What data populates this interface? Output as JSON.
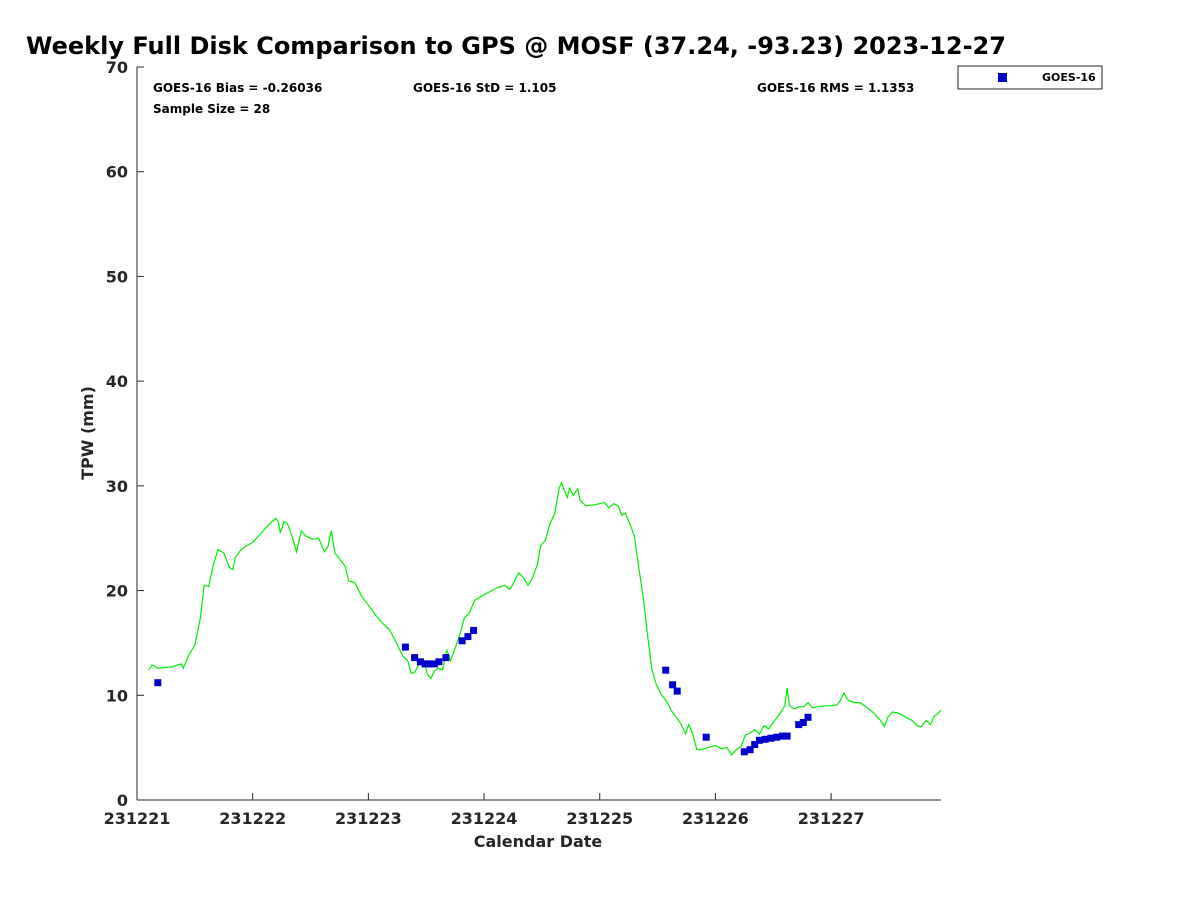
{
  "chart_data": {
    "type": "line",
    "title": "Weekly Full Disk Comparison to GPS @ MOSF (37.24, -93.23) 2023-12-27",
    "xlabel": "Calendar Date",
    "ylabel": "TPW (mm)",
    "xlim": [
      0,
      6.95
    ],
    "ylim": [
      0,
      70
    ],
    "x_ticks": [
      {
        "value": 0,
        "label": "231221"
      },
      {
        "value": 1,
        "label": "231222"
      },
      {
        "value": 2,
        "label": "231223"
      },
      {
        "value": 3,
        "label": "231224"
      },
      {
        "value": 4,
        "label": "231225"
      },
      {
        "value": 5,
        "label": "231226"
      },
      {
        "value": 6,
        "label": "231227"
      }
    ],
    "y_ticks": [
      {
        "value": 0,
        "label": "0"
      },
      {
        "value": 10,
        "label": "10"
      },
      {
        "value": 20,
        "label": "20"
      },
      {
        "value": 30,
        "label": "30"
      },
      {
        "value": 40,
        "label": "40"
      },
      {
        "value": 50,
        "label": "50"
      },
      {
        "value": 60,
        "label": "60"
      },
      {
        "value": 70,
        "label": "70"
      }
    ],
    "stats": {
      "bias": "GOES-16 Bias = -0.26036",
      "std": "GOES-16 StD = 1.105",
      "rms": "GOES-16 RMS = 1.1353",
      "sample_size": "Sample Size = 28"
    },
    "legend": {
      "position": "top-right, outside plot",
      "entries": [
        {
          "label": "GOES-16",
          "color": "#0000cc",
          "marker": "square"
        }
      ]
    },
    "series": [
      {
        "style": "line",
        "color": "#00ee00",
        "points": [
          [
            0.1,
            12.4
          ],
          [
            0.13,
            12.9
          ],
          [
            0.18,
            12.6
          ],
          [
            0.3,
            12.7
          ],
          [
            0.38,
            13.0
          ],
          [
            0.4,
            12.6
          ],
          [
            0.45,
            13.9
          ],
          [
            0.5,
            14.8
          ],
          [
            0.55,
            17.5
          ],
          [
            0.58,
            20.5
          ],
          [
            0.62,
            20.4
          ],
          [
            0.66,
            22.5
          ],
          [
            0.7,
            23.9
          ],
          [
            0.75,
            23.6
          ],
          [
            0.8,
            22.2
          ],
          [
            0.83,
            22.0
          ],
          [
            0.85,
            23.2
          ],
          [
            0.9,
            23.9
          ],
          [
            0.95,
            24.3
          ],
          [
            1.0,
            24.6
          ],
          [
            1.05,
            25.2
          ],
          [
            1.1,
            25.8
          ],
          [
            1.15,
            26.4
          ],
          [
            1.2,
            26.9
          ],
          [
            1.22,
            26.6
          ],
          [
            1.24,
            25.5
          ],
          [
            1.27,
            26.6
          ],
          [
            1.3,
            26.4
          ],
          [
            1.34,
            25.2
          ],
          [
            1.38,
            23.7
          ],
          [
            1.42,
            25.7
          ],
          [
            1.46,
            25.2
          ],
          [
            1.52,
            24.9
          ],
          [
            1.57,
            25.0
          ],
          [
            1.62,
            23.7
          ],
          [
            1.65,
            24.2
          ],
          [
            1.68,
            25.7
          ],
          [
            1.71,
            23.6
          ],
          [
            1.76,
            22.9
          ],
          [
            1.8,
            22.3
          ],
          [
            1.83,
            20.9
          ],
          [
            1.88,
            20.8
          ],
          [
            1.94,
            19.5
          ],
          [
            2.0,
            18.6
          ],
          [
            2.06,
            17.7
          ],
          [
            2.12,
            16.9
          ],
          [
            2.18,
            16.3
          ],
          [
            2.22,
            15.5
          ],
          [
            2.26,
            14.6
          ],
          [
            2.3,
            13.7
          ],
          [
            2.34,
            13.3
          ],
          [
            2.37,
            12.1
          ],
          [
            2.4,
            12.2
          ],
          [
            2.44,
            13.0
          ],
          [
            2.48,
            13.3
          ],
          [
            2.51,
            12.0
          ],
          [
            2.54,
            11.6
          ],
          [
            2.57,
            12.3
          ],
          [
            2.6,
            12.6
          ],
          [
            2.64,
            12.4
          ],
          [
            2.68,
            14.3
          ],
          [
            2.71,
            13.3
          ],
          [
            2.75,
            14.5
          ],
          [
            2.79,
            15.8
          ],
          [
            2.83,
            17.4
          ],
          [
            2.87,
            17.8
          ],
          [
            2.92,
            19.1
          ],
          [
            3.0,
            19.6
          ],
          [
            3.05,
            19.9
          ],
          [
            3.12,
            20.3
          ],
          [
            3.18,
            20.5
          ],
          [
            3.22,
            20.1
          ],
          [
            3.25,
            20.6
          ],
          [
            3.28,
            21.3
          ],
          [
            3.3,
            21.7
          ],
          [
            3.34,
            21.2
          ],
          [
            3.38,
            20.5
          ],
          [
            3.42,
            21.2
          ],
          [
            3.46,
            22.5
          ],
          [
            3.49,
            24.3
          ],
          [
            3.53,
            24.8
          ],
          [
            3.57,
            26.4
          ],
          [
            3.61,
            27.3
          ],
          [
            3.65,
            29.8
          ],
          [
            3.67,
            30.3
          ],
          [
            3.7,
            29.4
          ],
          [
            3.72,
            28.9
          ],
          [
            3.74,
            29.8
          ],
          [
            3.77,
            29.1
          ],
          [
            3.81,
            29.7
          ],
          [
            3.83,
            28.6
          ],
          [
            3.88,
            28.1
          ],
          [
            3.96,
            28.2
          ],
          [
            4.04,
            28.4
          ],
          [
            4.08,
            27.9
          ],
          [
            4.12,
            28.3
          ],
          [
            4.16,
            28.1
          ],
          [
            4.19,
            27.2
          ],
          [
            4.22,
            27.4
          ],
          [
            4.26,
            26.4
          ],
          [
            4.3,
            25.2
          ],
          [
            4.34,
            22.0
          ],
          [
            4.38,
            19.0
          ],
          [
            4.41,
            16.0
          ],
          [
            4.45,
            12.5
          ],
          [
            4.49,
            11.0
          ],
          [
            4.53,
            10.1
          ],
          [
            4.58,
            9.4
          ],
          [
            4.62,
            8.5
          ],
          [
            4.67,
            7.8
          ],
          [
            4.71,
            7.1
          ],
          [
            4.74,
            6.3
          ],
          [
            4.77,
            7.2
          ],
          [
            4.8,
            6.4
          ],
          [
            4.84,
            4.8
          ],
          [
            4.88,
            4.8
          ],
          [
            4.94,
            5.0
          ],
          [
            5.0,
            5.2
          ],
          [
            5.05,
            4.9
          ],
          [
            5.1,
            5.0
          ],
          [
            5.14,
            4.3
          ],
          [
            5.18,
            4.8
          ],
          [
            5.22,
            5.1
          ],
          [
            5.26,
            6.2
          ],
          [
            5.3,
            6.4
          ],
          [
            5.34,
            6.7
          ],
          [
            5.38,
            6.3
          ],
          [
            5.42,
            7.1
          ],
          [
            5.46,
            6.8
          ],
          [
            5.5,
            7.4
          ],
          [
            5.56,
            8.3
          ],
          [
            5.6,
            9.0
          ],
          [
            5.62,
            10.7
          ],
          [
            5.64,
            9.0
          ],
          [
            5.68,
            8.7
          ],
          [
            5.72,
            8.9
          ],
          [
            5.76,
            8.9
          ],
          [
            5.8,
            9.3
          ],
          [
            5.84,
            8.8
          ],
          [
            5.88,
            8.9
          ],
          [
            5.94,
            9.0
          ],
          [
            6.0,
            9.0
          ],
          [
            6.05,
            9.1
          ],
          [
            6.08,
            9.5
          ],
          [
            6.11,
            10.2
          ],
          [
            6.15,
            9.5
          ],
          [
            6.2,
            9.3
          ],
          [
            6.25,
            9.3
          ],
          [
            6.3,
            8.9
          ],
          [
            6.35,
            8.5
          ],
          [
            6.4,
            7.9
          ],
          [
            6.43,
            7.6
          ],
          [
            6.46,
            7.0
          ],
          [
            6.49,
            7.9
          ],
          [
            6.53,
            8.4
          ],
          [
            6.58,
            8.3
          ],
          [
            6.63,
            8.0
          ],
          [
            6.66,
            7.8
          ],
          [
            6.7,
            7.6
          ],
          [
            6.74,
            7.1
          ],
          [
            6.78,
            7.0
          ],
          [
            6.82,
            7.6
          ],
          [
            6.86,
            7.2
          ],
          [
            6.89,
            8.0
          ],
          [
            6.92,
            8.2
          ],
          [
            6.95,
            8.6
          ]
        ]
      },
      {
        "name": "GOES-16",
        "style": "marker",
        "color": "#0000cc",
        "points": [
          [
            0.18,
            11.2
          ],
          [
            2.32,
            14.6
          ],
          [
            2.4,
            13.6
          ],
          [
            2.45,
            13.2
          ],
          [
            2.49,
            13.0
          ],
          [
            2.53,
            13.0
          ],
          [
            2.57,
            13.0
          ],
          [
            2.61,
            13.2
          ],
          [
            2.67,
            13.6
          ],
          [
            2.81,
            15.2
          ],
          [
            2.86,
            15.6
          ],
          [
            2.91,
            16.2
          ],
          [
            4.57,
            12.4
          ],
          [
            4.63,
            11.0
          ],
          [
            4.67,
            10.4
          ],
          [
            4.92,
            6.0
          ],
          [
            5.25,
            4.6
          ],
          [
            5.3,
            4.8
          ],
          [
            5.34,
            5.3
          ],
          [
            5.38,
            5.7
          ],
          [
            5.43,
            5.8
          ],
          [
            5.48,
            5.9
          ],
          [
            5.53,
            6.0
          ],
          [
            5.58,
            6.1
          ],
          [
            5.62,
            6.1
          ],
          [
            5.72,
            7.2
          ],
          [
            5.76,
            7.4
          ],
          [
            5.8,
            7.9
          ]
        ]
      }
    ]
  }
}
